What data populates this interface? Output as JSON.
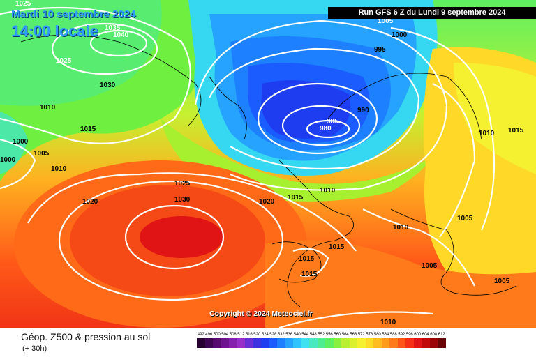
{
  "header": {
    "date": "Mardi 10 septembre 2024",
    "time": "14:00 locale",
    "run": "Run GFS 6 Z du Lundi 9 septembre 2024"
  },
  "copyright": "Copyright © 2024 Meteociel.fr",
  "footer": {
    "title": "Géop. Z500 & pression au sol",
    "subtitle": "(+ 30h)"
  },
  "isobar_labels": [
    "1025",
    "1035",
    "1040",
    "1025",
    "1030",
    "1010",
    "1015",
    "1000",
    "1005",
    "1000",
    "1010",
    "1025",
    "1030",
    "1020",
    "1020",
    "1015",
    "1010",
    "1005",
    "1000",
    "995",
    "990",
    "985",
    "980",
    "1010",
    "1015",
    "1010",
    "1005",
    "1015",
    "1015",
    "1015",
    "1005",
    "1005",
    "1010"
  ],
  "scale": [
    {
      "label": "492",
      "color": "#2a0033"
    },
    {
      "label": "496",
      "color": "#3d0552"
    },
    {
      "label": "500",
      "color": "#560a70"
    },
    {
      "label": "504",
      "color": "#6e1490"
    },
    {
      "label": "508",
      "color": "#8420ad"
    },
    {
      "label": "512",
      "color": "#972fc8"
    },
    {
      "label": "516",
      "color": "#6a2fd6"
    },
    {
      "label": "520",
      "color": "#3d32e0"
    },
    {
      "label": "524",
      "color": "#1f3df0"
    },
    {
      "label": "528",
      "color": "#1a5cff"
    },
    {
      "label": "532",
      "color": "#1d80ff"
    },
    {
      "label": "536",
      "color": "#25a3ff"
    },
    {
      "label": "540",
      "color": "#30c4ff"
    },
    {
      "label": "544",
      "color": "#3fe0f0"
    },
    {
      "label": "548",
      "color": "#48e8c0"
    },
    {
      "label": "552",
      "color": "#50ec90"
    },
    {
      "label": "556",
      "color": "#5ef060"
    },
    {
      "label": "560",
      "color": "#8af040"
    },
    {
      "label": "564",
      "color": "#b6f030"
    },
    {
      "label": "568",
      "color": "#dcf030"
    },
    {
      "label": "572",
      "color": "#f5f030"
    },
    {
      "label": "576",
      "color": "#ffdc28"
    },
    {
      "label": "580",
      "color": "#ffbd22"
    },
    {
      "label": "584",
      "color": "#ff9c1e"
    },
    {
      "label": "588",
      "color": "#ff7a1a"
    },
    {
      "label": "592",
      "color": "#ff5518"
    },
    {
      "label": "596",
      "color": "#f53016"
    },
    {
      "label": "600",
      "color": "#e01414"
    },
    {
      "label": "604",
      "color": "#c20a0a"
    },
    {
      "label": "608",
      "color": "#9c0505"
    },
    {
      "label": "612",
      "color": "#6a0303"
    }
  ],
  "colors": {
    "low_core": "#1d2fe0",
    "high_core": "#ee1010",
    "text_accent": "#2f9bff"
  }
}
